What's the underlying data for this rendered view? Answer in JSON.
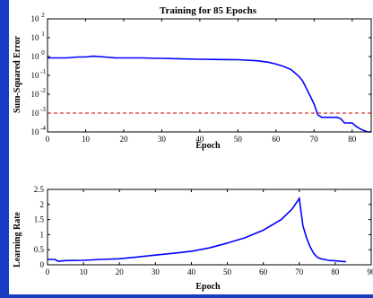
{
  "colors": {
    "background": "#1a3bc4",
    "figure": "#ffffff",
    "series": "#0000ff",
    "goal": "#cc0000",
    "axis": "#000000"
  },
  "chart_data": [
    {
      "type": "line",
      "title": "Training for 85 Epochs",
      "xlabel": "Epoch",
      "ylabel": "Sum-Squared Error",
      "xlim": [
        0,
        85
      ],
      "ylim": [
        0.0001,
        100
      ],
      "yscale": "log",
      "grid": false,
      "xticks": [
        0,
        10,
        20,
        30,
        40,
        50,
        60,
        70,
        80
      ],
      "yticks": [
        {
          "value": 0.0001,
          "base": "10",
          "exp": "-4"
        },
        {
          "value": 0.001,
          "base": "10",
          "exp": "-3"
        },
        {
          "value": 0.01,
          "base": "10",
          "exp": "-2"
        },
        {
          "value": 0.1,
          "base": "10",
          "exp": "-1"
        },
        {
          "value": 1,
          "base": "10",
          "exp": "0"
        },
        {
          "value": 10,
          "base": "10",
          "exp": "1"
        },
        {
          "value": 100,
          "base": "10",
          "exp": "2"
        }
      ],
      "series": [
        {
          "style": "solid",
          "x": [
            0,
            5,
            8,
            10,
            12,
            15,
            18,
            20,
            25,
            28,
            30,
            35,
            40,
            45,
            50,
            55,
            58,
            60,
            62,
            64,
            66,
            67,
            68,
            69,
            70,
            71,
            72,
            75,
            76,
            77,
            78,
            79,
            80,
            81,
            82,
            83,
            84,
            85
          ],
          "y": [
            0.85,
            0.85,
            0.95,
            0.95,
            1.05,
            0.95,
            0.85,
            0.85,
            0.85,
            0.8,
            0.8,
            0.75,
            0.72,
            0.7,
            0.68,
            0.6,
            0.5,
            0.4,
            0.3,
            0.2,
            0.09,
            0.05,
            0.02,
            0.008,
            0.003,
            0.0008,
            0.0006,
            0.0006,
            0.0006,
            0.0005,
            0.0003,
            0.0003,
            0.0003,
            0.0002,
            0.00015,
            0.00012,
            0.0001,
            0.0001
          ]
        },
        {
          "style": "dashed",
          "x": [
            0,
            85
          ],
          "y": [
            0.001,
            0.001
          ]
        }
      ]
    },
    {
      "type": "line",
      "xlabel": "Epoch",
      "ylabel": "Learning Rate",
      "xlim": [
        0,
        90
      ],
      "ylim": [
        0,
        2.5
      ],
      "grid": false,
      "xticks": [
        0,
        10,
        20,
        30,
        40,
        50,
        60,
        70,
        80,
        90
      ],
      "yticks": [
        0,
        0.5,
        1,
        1.5,
        2,
        2.5
      ],
      "series": [
        {
          "style": "solid",
          "x": [
            0,
            2,
            3,
            5,
            10,
            15,
            20,
            25,
            30,
            35,
            40,
            45,
            50,
            55,
            60,
            65,
            68,
            70,
            71,
            72,
            73,
            74,
            75,
            76,
            77,
            78,
            80,
            82,
            83
          ],
          "y": [
            0.18,
            0.18,
            0.12,
            0.14,
            0.15,
            0.18,
            0.2,
            0.26,
            0.32,
            0.38,
            0.45,
            0.56,
            0.72,
            0.9,
            1.15,
            1.5,
            1.85,
            2.2,
            1.3,
            0.9,
            0.6,
            0.38,
            0.25,
            0.2,
            0.18,
            0.15,
            0.13,
            0.11,
            0.1
          ]
        }
      ]
    }
  ]
}
